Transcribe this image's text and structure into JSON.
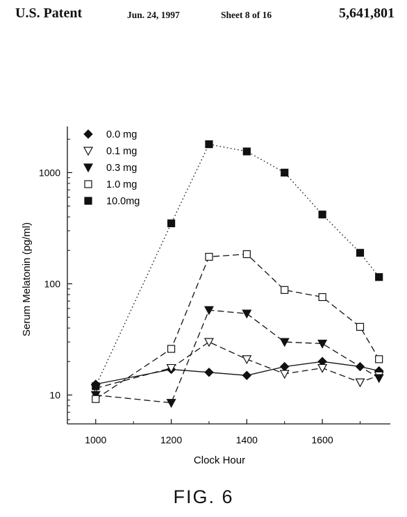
{
  "header": {
    "left": "U.S. Patent",
    "date": "Jun. 24, 1997",
    "sheet": "Sheet 8 of 16",
    "number": "5,641,801"
  },
  "figure_label": "FIG. 6",
  "chart_data": {
    "type": "line",
    "xlabel": "Clock Hour",
    "ylabel": "Serum Melatonin (pg/ml)",
    "y_scale": "log",
    "x_ticks": [
      "1000",
      "1200",
      "1400",
      "1600"
    ],
    "x_tick_values": [
      1000,
      1200,
      1400,
      1600
    ],
    "y_ticks": [
      "10",
      "100",
      "1000"
    ],
    "y_tick_values": [
      10,
      100,
      1000
    ],
    "xlim": [
      925,
      1780
    ],
    "ylim": [
      5.5,
      2600
    ],
    "legend_position": "top-left",
    "series": [
      {
        "name": "0.0 mg",
        "marker": "diamond-filled",
        "line": "solid",
        "x": [
          1000,
          1200,
          1300,
          1400,
          1500,
          1600,
          1700,
          1750
        ],
        "y": [
          12.5,
          17,
          16,
          15,
          18,
          20,
          18,
          16.5
        ]
      },
      {
        "name": "0.1 mg",
        "marker": "triangle-down-open",
        "line": "dashed",
        "x": [
          1000,
          1200,
          1300,
          1400,
          1500,
          1600,
          1700,
          1750
        ],
        "y": [
          11.5,
          17.5,
          30,
          21,
          15.5,
          17.5,
          13,
          15
        ]
      },
      {
        "name": "0.3 mg",
        "marker": "triangle-down-filled",
        "line": "dashed",
        "x": [
          1000,
          1200,
          1300,
          1400,
          1500,
          1600,
          1750
        ],
        "y": [
          10,
          8.5,
          58,
          54,
          30,
          29,
          14.2
        ]
      },
      {
        "name": "1.0 mg",
        "marker": "square-open",
        "line": "dashed",
        "x": [
          1000,
          1200,
          1300,
          1400,
          1500,
          1600,
          1700,
          1750
        ],
        "y": [
          9.2,
          26,
          175,
          185,
          88,
          76,
          41,
          21
        ]
      },
      {
        "name": "10.0mg",
        "marker": "square-filled",
        "line": "dotted",
        "x": [
          1000,
          1200,
          1300,
          1400,
          1500,
          1600,
          1700,
          1750
        ],
        "y": [
          12,
          350,
          1800,
          1550,
          1000,
          420,
          190,
          115
        ]
      }
    ]
  }
}
